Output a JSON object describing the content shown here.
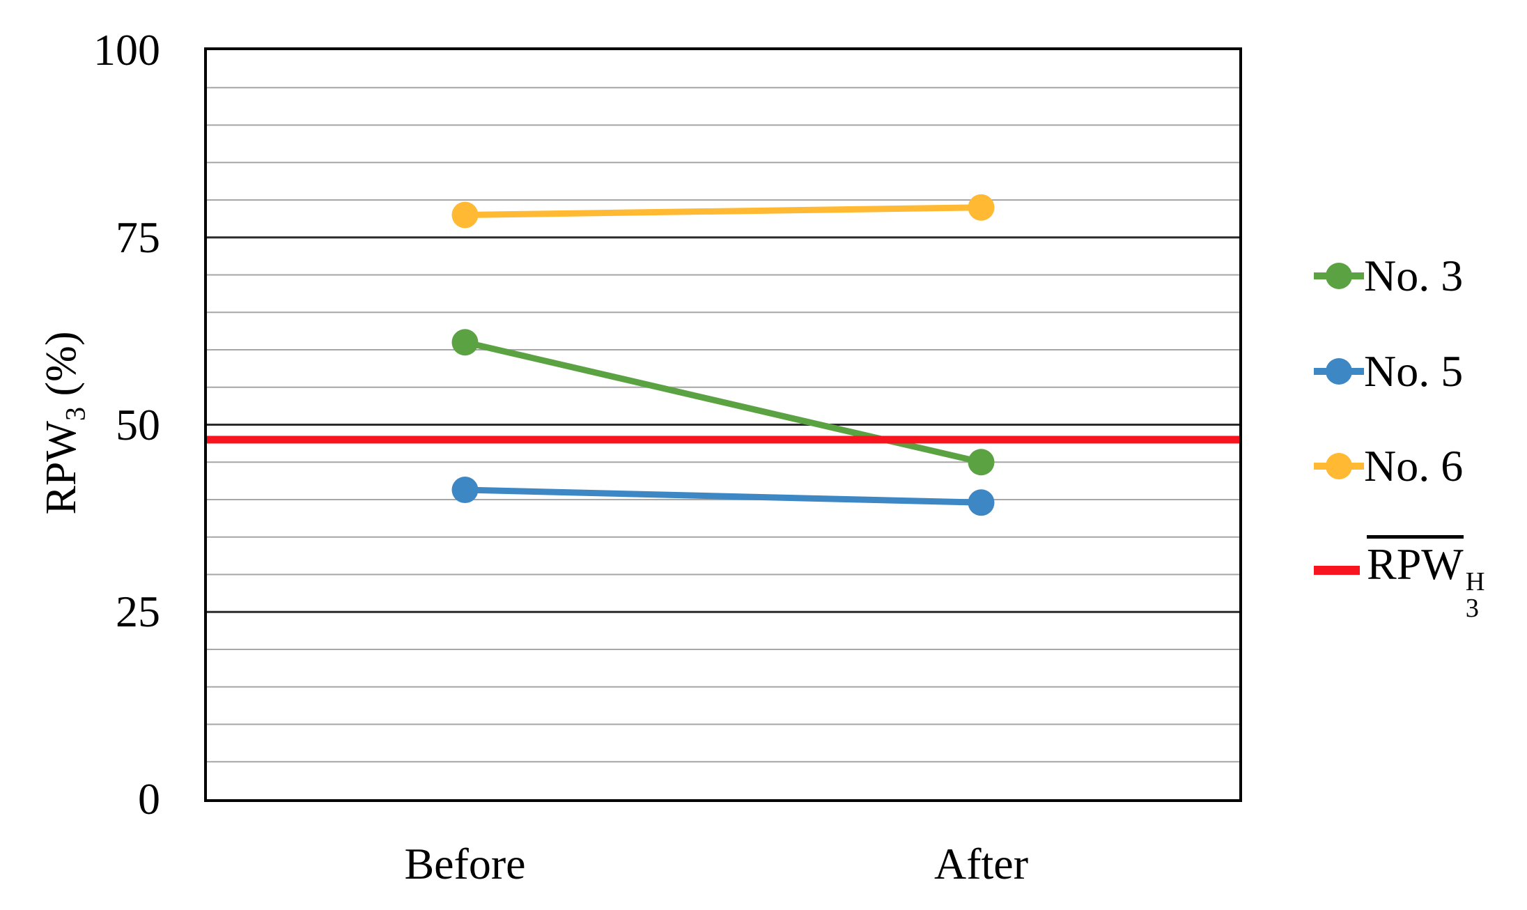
{
  "axis": {
    "y_label_base": "RPW",
    "y_label_sub": "3",
    "y_label_rest": " (%)",
    "x_tick_labels": [
      "Before",
      "After"
    ],
    "y_tick_labels": [
      "0",
      "25",
      "50",
      "75",
      "100"
    ]
  },
  "legend": {
    "items": [
      "No. 3",
      "No. 5",
      "No. 6"
    ],
    "ref_base": "RPW",
    "ref_sup": "H",
    "ref_sub": "3"
  },
  "colors": {
    "series_green": "#5BA243",
    "series_blue": "#3E87C5",
    "series_yellow": "#FFB933",
    "reference_red": "#F8141F",
    "grid_minor": "#A6A6A6",
    "grid_major": "#2B2B2B",
    "border": "#000000",
    "text": "#000000"
  },
  "chart_data": {
    "type": "line",
    "categories": [
      "Before",
      "After"
    ],
    "series": [
      {
        "name": "No. 3",
        "color": "#5BA243",
        "values": [
          61,
          45
        ]
      },
      {
        "name": "No. 5",
        "color": "#3E87C5",
        "values": [
          41.3,
          39.6
        ]
      },
      {
        "name": "No. 6",
        "color": "#FFB933",
        "values": [
          78,
          79
        ]
      }
    ],
    "reference_line": {
      "label": "RPW3 H (mean, overlined)",
      "color": "#F8141F",
      "value": 48
    },
    "ylabel": "RPW3 (%)",
    "ylim": [
      0,
      100
    ],
    "yticks": [
      0,
      25,
      50,
      75,
      100
    ],
    "minor_grid_step": 5,
    "major_grid_step": 25,
    "grid": true,
    "legend_position": "right",
    "marker": "circle",
    "line_width": 9,
    "marker_radius": 19
  }
}
